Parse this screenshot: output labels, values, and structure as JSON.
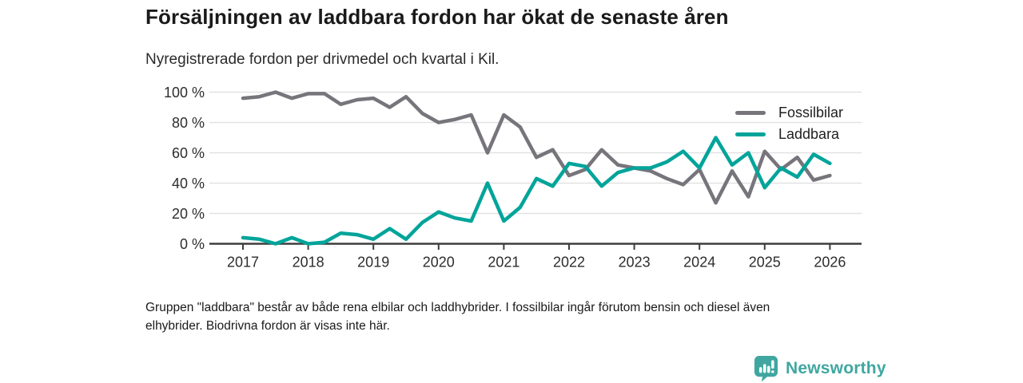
{
  "header": {
    "title": "Försäljningen av laddbara fordon har ökat de senaste åren",
    "subtitle": "Nyregistrerade fordon per drivmedel och kvartal i Kil."
  },
  "chart_data": {
    "type": "line",
    "x_unit": "quarter",
    "categories": [
      "2017 Q1",
      "2017 Q2",
      "2017 Q3",
      "2017 Q4",
      "2018 Q1",
      "2018 Q2",
      "2018 Q3",
      "2018 Q4",
      "2019 Q1",
      "2019 Q2",
      "2019 Q3",
      "2019 Q4",
      "2020 Q1",
      "2020 Q2",
      "2020 Q3",
      "2020 Q4",
      "2021 Q1",
      "2021 Q2",
      "2021 Q3",
      "2021 Q4",
      "2022 Q1",
      "2022 Q2",
      "2022 Q3",
      "2022 Q4",
      "2023 Q1",
      "2023 Q2",
      "2023 Q3",
      "2023 Q4",
      "2024 Q1",
      "2024 Q2",
      "2024 Q3",
      "2024 Q4",
      "2025 Q1",
      "2025 Q2",
      "2025 Q3",
      "2025 Q4",
      "2026 Q1"
    ],
    "x_tick_labels": [
      "2017",
      "2018",
      "2019",
      "2020",
      "2021",
      "2022",
      "2023",
      "2024",
      "2025",
      "2026"
    ],
    "yticks": [
      0,
      20,
      40,
      60,
      80,
      100
    ],
    "ytick_suffix": " %",
    "ylim": [
      0,
      100
    ],
    "grid": true,
    "legend_position": "top-right",
    "series": [
      {
        "name": "Fossilbilar",
        "color": "#77757b",
        "values": [
          96,
          97,
          100,
          96,
          99,
          99,
          92,
          95,
          96,
          90,
          97,
          86,
          80,
          82,
          85,
          60,
          85,
          77,
          57,
          62,
          45,
          49,
          62,
          52,
          50,
          48,
          43,
          39,
          49,
          27,
          48,
          31,
          61,
          49,
          57,
          42,
          45
        ]
      },
      {
        "name": "Laddbara",
        "color": "#00a49a",
        "values": [
          4,
          3,
          0,
          4,
          0,
          1,
          7,
          6,
          3,
          10,
          3,
          14,
          21,
          17,
          15,
          40,
          15,
          24,
          43,
          38,
          53,
          51,
          38,
          47,
          50,
          50,
          54,
          61,
          50,
          70,
          52,
          60,
          37,
          50,
          44,
          59,
          53
        ]
      }
    ],
    "axis_color": "#3d3d3d",
    "grid_color": "#e2e2e2",
    "tick_label_color": "#2d2d2d"
  },
  "footnote": {
    "line1": "Gruppen \"laddbara\" består av både rena elbilar och laddhybrider. I fossilbilar ingår förutom bensin och diesel även",
    "line2": "elhybrider. Biodrivna fordon är visas inte här."
  },
  "branding": {
    "logo_text": "Newsworthy",
    "brand_color": "#3fa7a0"
  }
}
